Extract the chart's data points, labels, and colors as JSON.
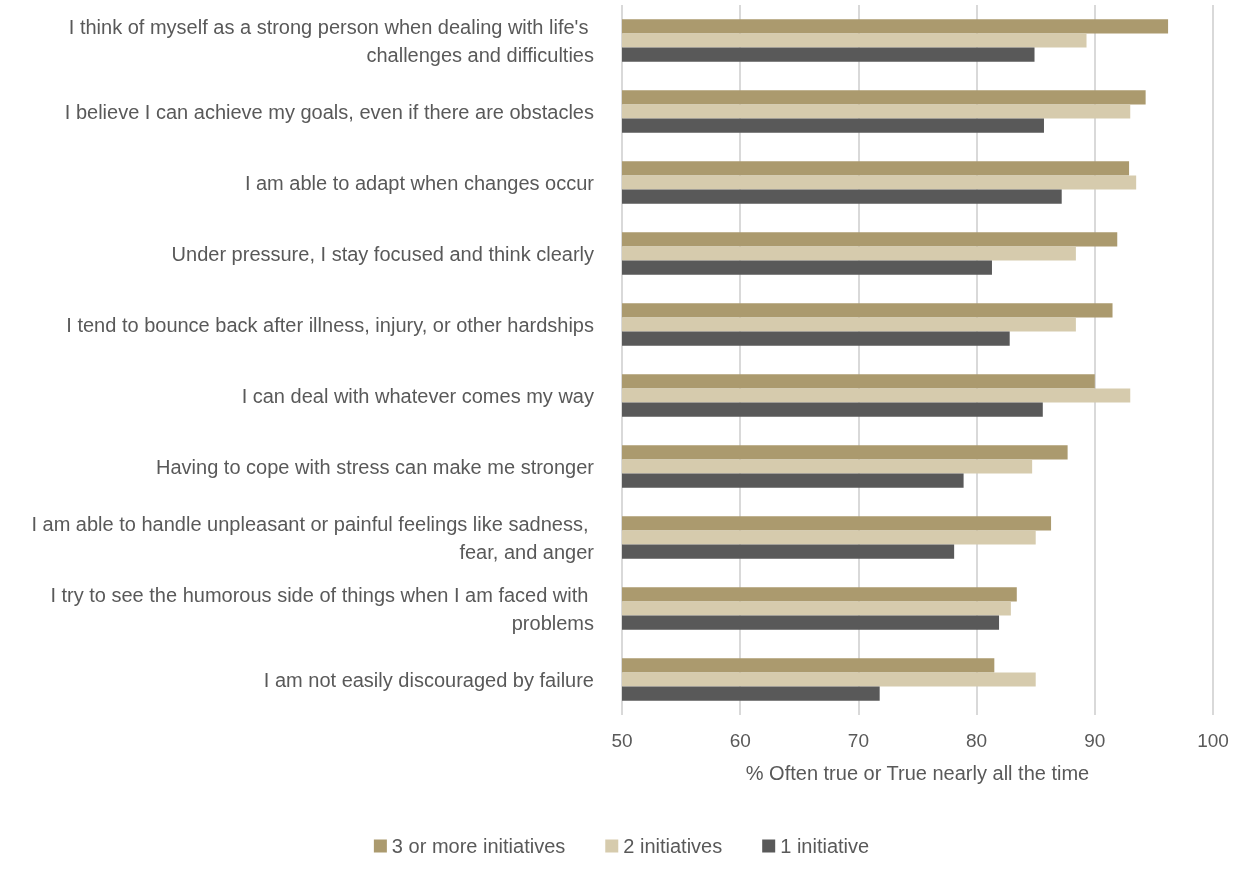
{
  "chart_data": {
    "type": "bar",
    "orientation": "horizontal",
    "xlabel": "% Often true or True nearly all the time",
    "categories": [
      "I think of myself as a strong person when dealing with life's challenges and difficulties",
      "I believe I can achieve my goals, even if there are obstacles",
      "I am able to adapt when changes occur",
      "Under pressure, I stay focused and think clearly",
      "I tend to bounce back after illness, injury, or other hardships",
      "I can deal with whatever comes my way",
      "Having to cope with stress can make me stronger",
      "I am able to handle unpleasant or painful feelings like sadness, fear, and anger",
      "I try to see the humorous side of things when I am faced with problems",
      "I am not easily discouraged by failure"
    ],
    "series": [
      {
        "name": "3 or more initiatives",
        "color": "#ab9a6e",
        "values": [
          96.2,
          94.3,
          92.9,
          91.9,
          91.5,
          90.0,
          87.7,
          86.3,
          83.4,
          81.5
        ]
      },
      {
        "name": "2 initiatives",
        "color": "#d6cbad",
        "values": [
          89.3,
          93.0,
          93.5,
          88.4,
          88.4,
          93.0,
          84.7,
          85.0,
          82.9,
          85.0
        ]
      },
      {
        "name": "1 initiative",
        "color": "#595959",
        "values": [
          84.9,
          85.7,
          87.2,
          81.3,
          82.8,
          85.6,
          78.9,
          78.1,
          81.9,
          71.8
        ]
      }
    ],
    "xlim": [
      50,
      100
    ],
    "xticks": [
      50,
      60,
      70,
      80,
      90,
      100
    ],
    "grid": "x",
    "legend": "bottom"
  }
}
